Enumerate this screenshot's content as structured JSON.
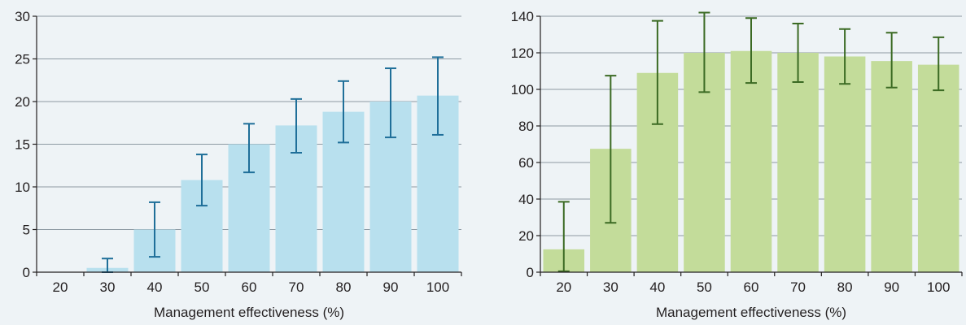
{
  "chart_data": [
    {
      "type": "bar",
      "categories": [
        "20",
        "30",
        "40",
        "50",
        "60",
        "70",
        "80",
        "90",
        "100"
      ],
      "values": [
        0,
        0.5,
        5.0,
        10.8,
        15.0,
        17.2,
        18.8,
        20.0,
        20.7
      ],
      "error_low": [
        0,
        0,
        1.8,
        7.8,
        11.7,
        14.0,
        15.2,
        15.8,
        16.1
      ],
      "error_high": [
        0,
        1.6,
        8.2,
        13.8,
        17.4,
        20.3,
        22.4,
        23.9,
        25.2
      ],
      "yticks": [
        0,
        5,
        10,
        15,
        20,
        25,
        30
      ],
      "ylim": [
        0,
        30
      ],
      "xlabel": "Management effectiveness (%)",
      "ylabel": "",
      "title": "",
      "grid": true,
      "bar_color": "#b8e0ee",
      "error_color": "#1f6f99"
    },
    {
      "type": "bar",
      "categories": [
        "20",
        "30",
        "40",
        "50",
        "60",
        "70",
        "80",
        "90",
        "100"
      ],
      "values": [
        12.5,
        67.5,
        109,
        120,
        121,
        120,
        118,
        115.5,
        113.5
      ],
      "error_low": [
        0.5,
        27,
        81,
        98.5,
        103.5,
        104,
        103,
        101,
        99.5
      ],
      "error_high": [
        38.5,
        107.5,
        137.5,
        142,
        139,
        136,
        133,
        131,
        128.5
      ],
      "yticks": [
        0,
        20,
        40,
        60,
        80,
        100,
        120,
        140
      ],
      "ylim": [
        0,
        140
      ],
      "xlabel": "Management effectiveness (%)",
      "ylabel": "",
      "title": "",
      "grid": true,
      "bar_color": "#c3dc9a",
      "error_color": "#3b6a23"
    }
  ]
}
